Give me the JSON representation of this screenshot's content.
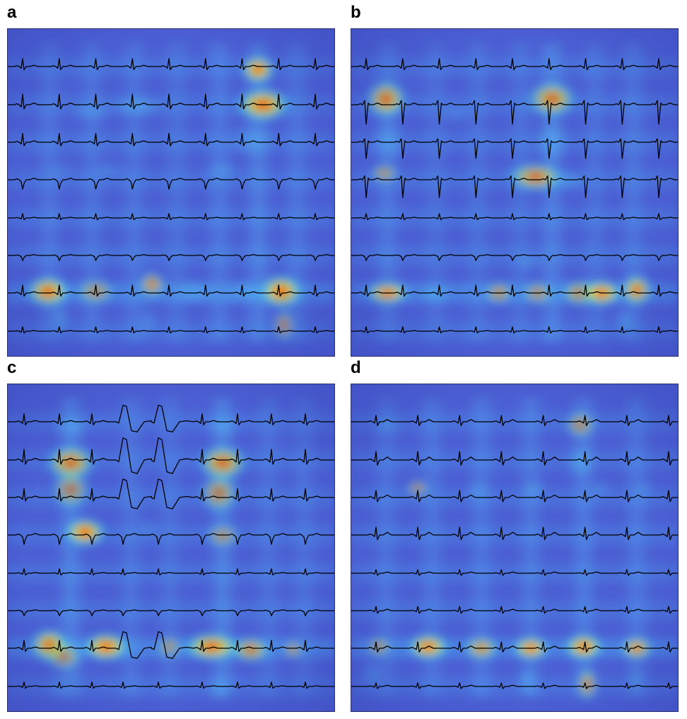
{
  "figure": {
    "panels": [
      {
        "id": "a",
        "label": "a",
        "beats": 9,
        "morph": "narrow",
        "pvc": false
      },
      {
        "id": "b",
        "label": "b",
        "beats": 9,
        "morph": "deep",
        "pvc": false
      },
      {
        "id": "c",
        "label": "c",
        "beats": 8,
        "morph": "narrow",
        "pvc": true
      },
      {
        "id": "d",
        "label": "d",
        "beats": 8,
        "morph": "rounded",
        "pvc": false
      }
    ],
    "colormap": "jet",
    "background_color": "#4b5fd3",
    "trace_color": "#000000",
    "leads_per_panel": 8
  }
}
